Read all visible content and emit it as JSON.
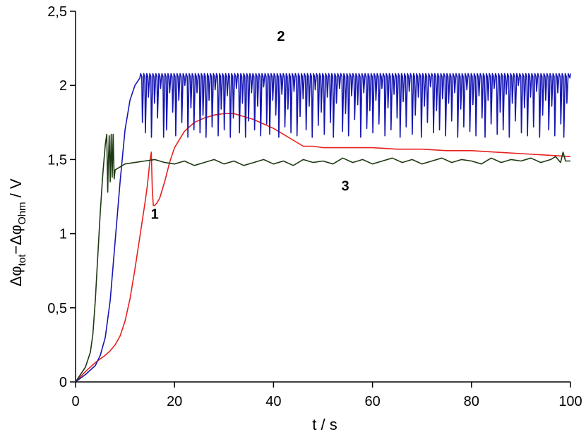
{
  "chart_data": {
    "type": "line",
    "xlabel": "t / s",
    "ylabel_parts": {
      "delta1": "Δφ",
      "sub1": "tot",
      "minus": "−Δφ",
      "sub2": "Ohm",
      "unit": " / V"
    },
    "xlim": [
      0,
      100
    ],
    "ylim": [
      0,
      2.5
    ],
    "x_ticks": [
      0,
      20,
      40,
      60,
      80,
      100
    ],
    "x_tick_labels": [
      "0",
      "20",
      "40",
      "60",
      "80",
      "100"
    ],
    "y_ticks": [
      0,
      0.5,
      1,
      1.5,
      2,
      2.5
    ],
    "y_tick_labels": [
      "0",
      "0,5",
      "1",
      "1,5",
      "2",
      "2,5"
    ],
    "grid": false,
    "series": [
      {
        "name": "1",
        "color": "#e8201e",
        "label_at": [
          16,
          1.1
        ],
        "x": [
          0,
          2,
          4,
          6,
          7,
          8,
          9,
          10,
          11,
          12,
          13,
          14,
          14.5,
          15,
          15.3,
          15.5,
          15.7,
          16,
          16.5,
          17,
          18,
          19,
          20,
          22,
          24,
          26,
          28,
          30,
          32,
          34,
          36,
          38,
          40,
          42,
          44,
          46,
          48,
          50,
          55,
          60,
          65,
          70,
          75,
          80,
          85,
          90,
          95,
          100
        ],
        "y": [
          0,
          0.07,
          0.13,
          0.18,
          0.21,
          0.25,
          0.31,
          0.41,
          0.56,
          0.76,
          0.98,
          1.2,
          1.32,
          1.48,
          1.55,
          1.3,
          1.19,
          1.19,
          1.21,
          1.24,
          1.35,
          1.48,
          1.58,
          1.69,
          1.75,
          1.78,
          1.8,
          1.81,
          1.81,
          1.79,
          1.77,
          1.74,
          1.71,
          1.67,
          1.63,
          1.59,
          1.59,
          1.58,
          1.58,
          1.58,
          1.57,
          1.57,
          1.56,
          1.56,
          1.55,
          1.54,
          1.53,
          1.52
        ]
      },
      {
        "name": "2",
        "color": "#1616b4",
        "label_at": [
          41.5,
          2.3
        ],
        "x": [
          0,
          2,
          4,
          5,
          6,
          7,
          8,
          9,
          10,
          11,
          12,
          13
        ],
        "y": [
          0,
          0.05,
          0.11,
          0.18,
          0.3,
          0.55,
          0.95,
          1.35,
          1.7,
          1.9,
          2.0,
          2.05
        ],
        "osc_from": 13,
        "osc_to": 100,
        "osc_top": 2.08,
        "osc_bottoms": [
          1.75,
          1.68,
          1.92,
          1.65,
          1.88,
          1.78,
          1.98,
          1.65,
          1.7,
          1.95,
          1.82,
          1.66,
          1.9,
          1.75,
          2.0,
          1.65,
          1.85,
          1.7,
          1.95,
          1.68,
          1.8,
          1.65,
          1.9,
          1.72,
          1.97,
          1.66,
          1.84,
          1.7,
          1.93,
          1.65,
          1.78,
          1.98,
          1.68,
          1.88,
          1.65,
          1.76,
          1.95,
          1.7,
          1.86,
          1.66,
          1.99,
          1.74,
          1.67,
          1.9,
          1.8,
          1.65,
          1.94,
          1.72,
          1.84,
          1.68,
          1.96,
          1.66,
          1.79,
          1.91,
          1.7,
          1.86,
          1.65,
          1.97,
          1.73,
          1.82,
          1.67,
          1.92,
          1.75,
          1.65,
          1.88,
          1.98,
          1.69,
          1.81,
          1.66,
          1.93,
          1.77,
          1.87,
          1.65,
          1.95,
          1.71,
          1.83,
          1.68,
          1.9,
          1.74,
          1.98,
          1.66,
          1.85,
          1.7,
          1.94,
          1.78,
          1.65,
          1.89,
          1.72,
          1.96,
          1.67,
          1.8,
          1.92,
          1.65,
          1.86,
          1.75,
          1.99,
          1.68,
          1.83,
          1.7,
          1.91,
          1.66,
          1.88,
          1.76,
          1.95,
          1.65,
          1.84,
          1.72,
          1.97,
          1.69,
          1.87,
          1.66,
          1.93,
          1.78,
          1.65,
          1.9,
          1.74,
          1.98,
          1.67,
          1.82,
          1.7,
          1.94,
          1.65,
          1.88,
          1.76,
          2.0,
          1.68,
          1.85,
          1.66,
          1.92,
          1.72,
          1.96,
          1.65,
          1.8,
          1.9,
          1.7,
          1.86,
          1.66,
          1.95,
          1.74,
          1.65,
          1.88,
          2.05
        ]
      },
      {
        "name": "3",
        "color": "#1e3a14",
        "label_at": [
          54.5,
          1.29
        ],
        "x": [
          0,
          1,
          2,
          3,
          3.5,
          4,
          4.5,
          5,
          5.5,
          6,
          6.3,
          6.5,
          6.6,
          6.8,
          7,
          7.2,
          7.4,
          7.6,
          7.8,
          8,
          9,
          10,
          12,
          14,
          16,
          18,
          20,
          22,
          24,
          26,
          28,
          30,
          32,
          34,
          36,
          38,
          40,
          42,
          44,
          46,
          48,
          50,
          52,
          54,
          56,
          58,
          60,
          62,
          64,
          66,
          68,
          70,
          72,
          74,
          76,
          78,
          80,
          82,
          84,
          86,
          88,
          90,
          92,
          94,
          96,
          97,
          98,
          98.5,
          99,
          100
        ],
        "y": [
          0,
          0.05,
          0.1,
          0.2,
          0.32,
          0.55,
          0.85,
          1.15,
          1.4,
          1.6,
          1.67,
          1.28,
          1.45,
          1.66,
          1.35,
          1.67,
          1.38,
          1.67,
          1.37,
          1.43,
          1.45,
          1.47,
          1.48,
          1.49,
          1.5,
          1.48,
          1.47,
          1.49,
          1.46,
          1.48,
          1.5,
          1.47,
          1.49,
          1.46,
          1.48,
          1.5,
          1.47,
          1.49,
          1.46,
          1.5,
          1.48,
          1.49,
          1.47,
          1.51,
          1.48,
          1.5,
          1.47,
          1.49,
          1.51,
          1.48,
          1.5,
          1.47,
          1.49,
          1.51,
          1.48,
          1.5,
          1.49,
          1.47,
          1.51,
          1.48,
          1.5,
          1.49,
          1.51,
          1.48,
          1.5,
          1.52,
          1.48,
          1.55,
          1.49,
          1.49
        ]
      }
    ]
  }
}
